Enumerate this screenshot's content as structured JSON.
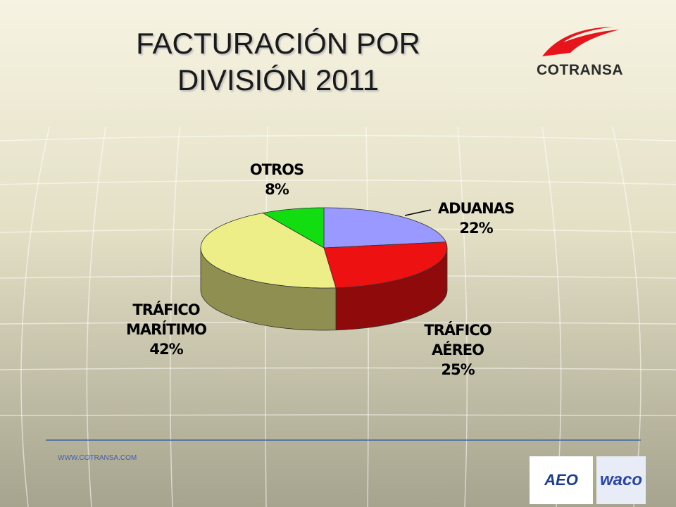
{
  "chart_data": {
    "type": "pie",
    "title": "FACTURACIÓN POR DIVISIÓN 2011",
    "categories": [
      "ADUANAS",
      "TRÁFICO AÉREO",
      "TRÁFICO MARÍTIMO",
      "OTROS"
    ],
    "values": [
      22,
      25,
      42,
      8
    ],
    "value_labels": [
      "22%",
      "25%",
      "42%",
      "8%"
    ],
    "colors": [
      "#9999ff",
      "#ee1111",
      "#eeee88",
      "#11dd11"
    ]
  },
  "logo": {
    "text": "COTRANSA"
  },
  "footer": {
    "url": "WWW.COTRANSA.COM",
    "badges": [
      "AEO",
      "waco"
    ]
  }
}
